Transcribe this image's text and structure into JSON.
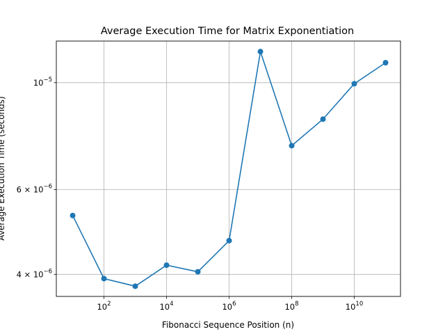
{
  "chart_data": {
    "type": "line",
    "title": "Average Execution Time for Matrix Exponentiation",
    "xlabel": "Fibonacci Sequence Position (n)",
    "ylabel": "Average Execution Time (seconds)",
    "xscale": "log",
    "yscale": "log",
    "xlim": [
      3.0,
      300000000000.0
    ],
    "ylim": [
      3.6e-06,
      1.22e-05
    ],
    "grid": true,
    "series_color": "#1f77b4",
    "x_ticks": [
      {
        "value": 100,
        "base": "10",
        "exp": "2"
      },
      {
        "value": 10000,
        "base": "10",
        "exp": "4"
      },
      {
        "value": 1000000,
        "base": "10",
        "exp": "6"
      },
      {
        "value": 100000000,
        "base": "10",
        "exp": "8"
      },
      {
        "value": 10000000000,
        "base": "10",
        "exp": "10"
      }
    ],
    "y_ticks": [
      {
        "value": 4e-06,
        "coef": "4 × 10",
        "exp": "−6"
      },
      {
        "value": 6e-06,
        "coef": "6 × 10",
        "exp": "−6"
      },
      {
        "value": 1e-05,
        "coef": "10",
        "exp": "−5"
      }
    ],
    "x": [
      10,
      100,
      1000,
      10000,
      100000,
      1000000,
      10000000,
      100000000,
      1000000000,
      10000000000,
      100000000000
    ],
    "values": [
      5.3e-06,
      3.92e-06,
      3.78e-06,
      4.18e-06,
      4.05e-06,
      4.7e-06,
      1.16e-05,
      7.4e-06,
      8.4e-06,
      9.95e-06,
      1.1e-05
    ]
  }
}
